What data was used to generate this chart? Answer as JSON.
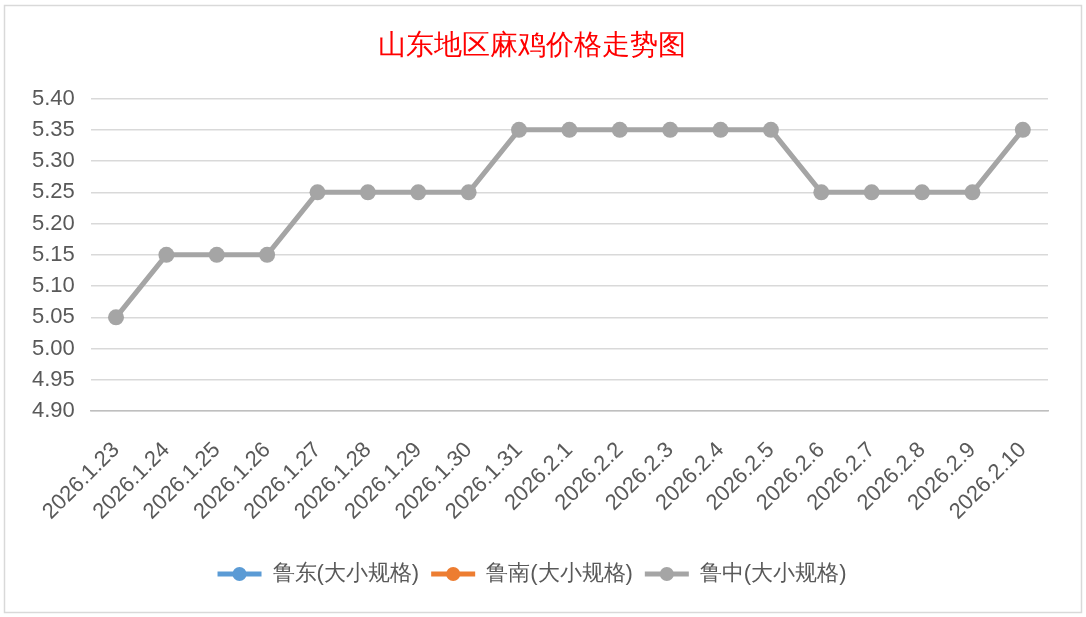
{
  "chart_data": {
    "type": "line",
    "title": "山东地区麻鸡价格走势图",
    "categories": [
      "2026.1.23",
      "2026.1.24",
      "2026.1.25",
      "2026.1.26",
      "2026.1.27",
      "2026.1.28",
      "2026.1.29",
      "2026.1.30",
      "2026.1.31",
      "2026.2.1",
      "2026.2.2",
      "2026.2.3",
      "2026.2.4",
      "2026.2.5",
      "2026.2.6",
      "2026.2.7",
      "2026.2.8",
      "2026.2.9",
      "2026.2.10"
    ],
    "series": [
      {
        "name": "鲁东(大小规格)",
        "color": "#5b9bd5",
        "values": [
          null,
          null,
          null,
          null,
          null,
          null,
          null,
          null,
          null,
          null,
          null,
          null,
          null,
          null,
          null,
          null,
          null,
          null,
          null
        ]
      },
      {
        "name": "鲁南(大小规格)",
        "color": "#ed7d31",
        "values": [
          null,
          null,
          null,
          null,
          null,
          null,
          null,
          null,
          null,
          null,
          null,
          null,
          null,
          null,
          null,
          null,
          null,
          null,
          null
        ]
      },
      {
        "name": "鲁中(大小规格)",
        "color": "#a5a5a5",
        "values": [
          5.05,
          5.15,
          5.15,
          5.15,
          5.25,
          5.25,
          5.25,
          5.25,
          5.35,
          5.35,
          5.35,
          5.35,
          5.35,
          5.35,
          5.25,
          5.25,
          5.25,
          5.25,
          5.35
        ]
      }
    ],
    "ylim": [
      4.9,
      5.4
    ],
    "yticks": [
      {
        "value": 4.9,
        "label": "4.90"
      },
      {
        "value": 4.95,
        "label": "4.95"
      },
      {
        "value": 5.0,
        "label": "5.00"
      },
      {
        "value": 5.05,
        "label": "5.05"
      },
      {
        "value": 5.1,
        "label": "5.10"
      },
      {
        "value": 5.15,
        "label": "5.15"
      },
      {
        "value": 5.2,
        "label": "5.20"
      },
      {
        "value": 5.25,
        "label": "5.25"
      },
      {
        "value": 5.3,
        "label": "5.30"
      },
      {
        "value": 5.35,
        "label": "5.35"
      },
      {
        "value": 5.4,
        "label": "5.40"
      }
    ],
    "grid": "y",
    "legend": "bottom",
    "marker": "circle"
  }
}
